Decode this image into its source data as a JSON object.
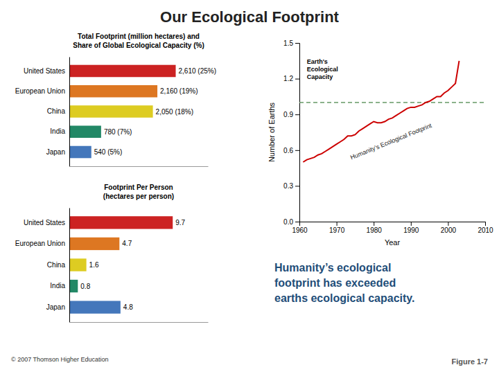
{
  "chart_data": [
    {
      "type": "bar",
      "orientation": "horizontal",
      "title": "Total Footprint (million hectares) and\nShare of Global Ecological Capacity (%)",
      "categories": [
        "United States",
        "European Union",
        "China",
        "India",
        "Japan"
      ],
      "values": [
        2610,
        2160,
        2050,
        780,
        540
      ],
      "value_labels": [
        "2,610 (25%)",
        "2,160 (19%)",
        "2,050 (18%)",
        "780 (7%)",
        "540 (5%)"
      ],
      "colors": [
        "#CC2222",
        "#DD7722",
        "#DDCC22",
        "#228866",
        "#4477BB"
      ],
      "xlim": [
        0,
        3400
      ],
      "data_labels": true,
      "tick_labels": "y",
      "grid": false
    },
    {
      "type": "bar",
      "orientation": "horizontal",
      "title": "Footprint Per Person\n(hectares per person)",
      "categories": [
        "United States",
        "European Union",
        "China",
        "India",
        "Japan"
      ],
      "values": [
        9.7,
        4.7,
        1.6,
        0.8,
        4.8
      ],
      "colors": [
        "#CC2222",
        "#DD7722",
        "#DDCC22",
        "#228866",
        "#4477BB"
      ],
      "xlim": [
        0,
        13
      ],
      "data_labels": true,
      "tick_labels": "y",
      "grid": false,
      "annotations": [
        "© 2007 Thomson Higher Education"
      ]
    },
    {
      "type": "line",
      "x": [
        1961,
        1962,
        1963,
        1964,
        1965,
        1966,
        1967,
        1968,
        1969,
        1970,
        1971,
        1972,
        1973,
        1974,
        1975,
        1976,
        1977,
        1978,
        1979,
        1980,
        1981,
        1982,
        1983,
        1984,
        1985,
        1986,
        1987,
        1988,
        1989,
        1990,
        1991,
        1992,
        1993,
        1994,
        1995,
        1996,
        1997,
        1998,
        1999,
        2000,
        2001,
        2002,
        2003
      ],
      "series": [
        {
          "color": "#CC0000",
          "values": [
            0.5,
            0.52,
            0.53,
            0.54,
            0.56,
            0.57,
            0.59,
            0.61,
            0.63,
            0.65,
            0.67,
            0.69,
            0.72,
            0.72,
            0.73,
            0.76,
            0.78,
            0.8,
            0.82,
            0.84,
            0.83,
            0.83,
            0.84,
            0.86,
            0.87,
            0.89,
            0.91,
            0.93,
            0.95,
            0.96,
            0.96,
            0.97,
            0.98,
            1.0,
            1.01,
            1.03,
            1.05,
            1.05,
            1.08,
            1.1,
            1.13,
            1.16,
            1.35
          ]
        }
      ],
      "reference_lines": [
        {
          "value": 1.0,
          "color": "#669966",
          "line_style": "dashed"
        }
      ],
      "xlabel": "Year",
      "ylabel": "Number of Earths",
      "xlim": [
        1960,
        2010
      ],
      "xticks": [
        1960,
        1970,
        1980,
        1990,
        2000,
        2010
      ],
      "ylim": [
        0,
        1.5
      ],
      "yticks": [
        {
          "value": 0,
          "label": "0.0"
        },
        0.3,
        0.6,
        0.9,
        1.2,
        1.5
      ],
      "grid": false,
      "annotations": [
        "Earth's\nEcological\nCapacity",
        "Humanity's Ecological Footprint",
        "Our Ecological Footprint",
        "Humanity’s ecological\nfootprint has exceeded\nearths ecological capacity.",
        "Figure 1-7"
      ]
    }
  ]
}
